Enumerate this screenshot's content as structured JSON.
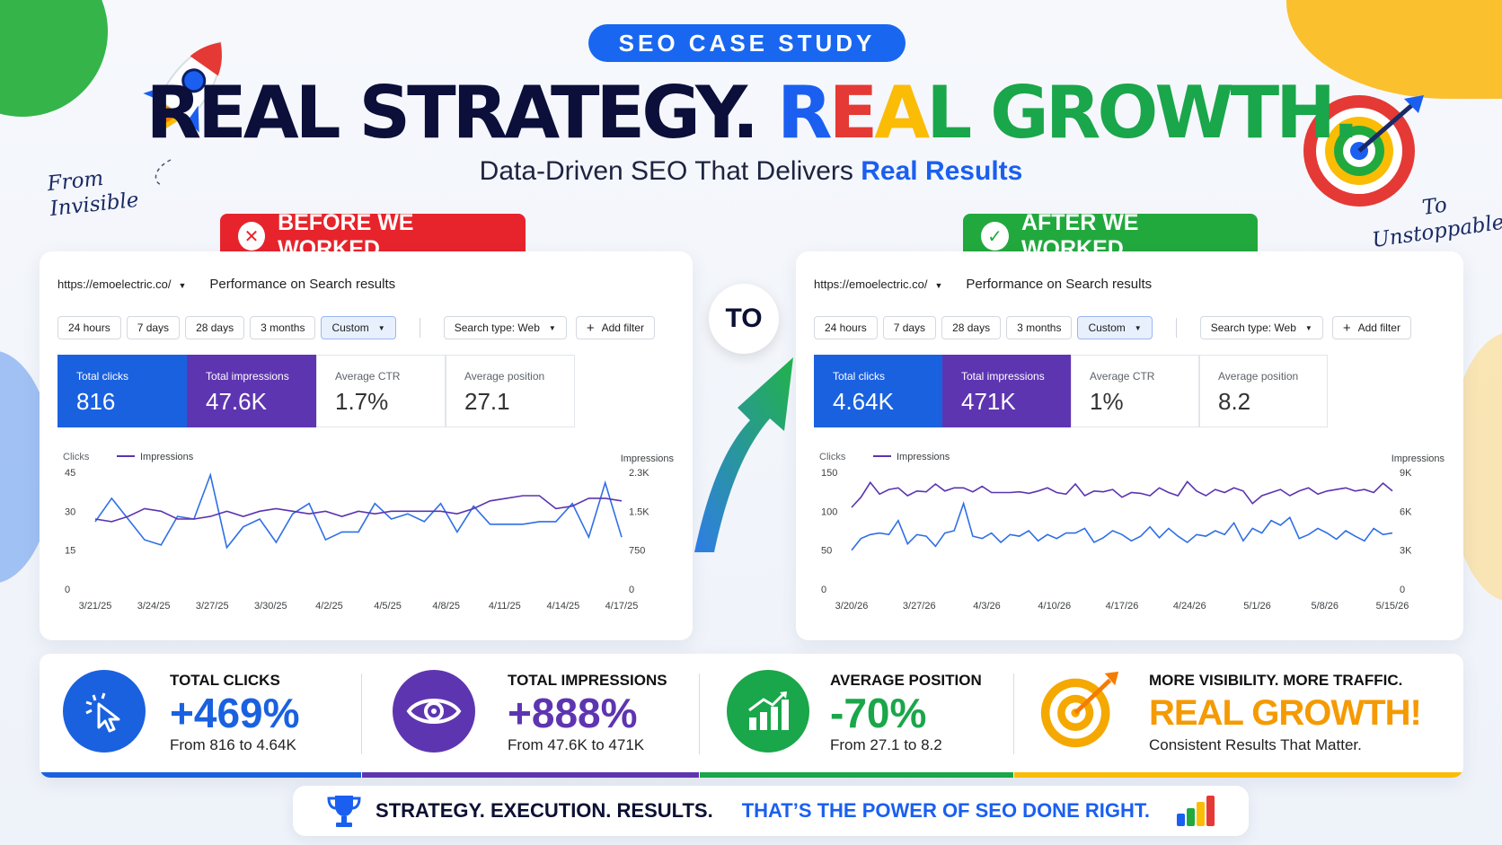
{
  "colors": {
    "brand_blue": "#1a5ff0",
    "red": "#e7242c",
    "green": "#22a93e",
    "purple": "#5e35b1",
    "yellow": "#fbbc05",
    "navy": "#0b0f3a"
  },
  "header": {
    "pill": "SEO CASE STUDY",
    "headline_part1": "REAL STRATEGY.",
    "headline_part2": [
      "R",
      "E",
      "A",
      "L"
    ],
    "headline_part3": "GROWTH.",
    "subline_part1": "Data-Driven SEO That Delivers",
    "subline_part2": "Real Results",
    "left_script_1": "From",
    "left_script_2": "Invisible",
    "right_script_1": "To",
    "right_script_2": "Unstoppable",
    "icons": [
      "rocket-icon",
      "target-icon"
    ]
  },
  "connector": {
    "label": "TO"
  },
  "before": {
    "badge": "BEFORE WE WORKED",
    "badge_icon": "close-icon",
    "url": "https://emoelectric.co/",
    "title": "Performance on Search results",
    "filters": [
      "24 hours",
      "7 days",
      "28 days",
      "3 months",
      "Custom"
    ],
    "search_type": "Search type: Web",
    "add_filter": "Add filter",
    "metrics": [
      {
        "label": "Total clicks",
        "value": "816"
      },
      {
        "label": "Total impressions",
        "value": "47.6K"
      },
      {
        "label": "Average CTR",
        "value": "1.7%"
      },
      {
        "label": "Average position",
        "value": "27.1"
      }
    ]
  },
  "after": {
    "badge": "AFTER WE WORKED",
    "badge_icon": "check-icon",
    "url": "https://emoelectric.co/",
    "title": "Performance on Search results",
    "filters": [
      "24 hours",
      "7 days",
      "28 days",
      "3 months",
      "Custom"
    ],
    "search_type": "Search type: Web",
    "add_filter": "Add filter",
    "metrics": [
      {
        "label": "Total clicks",
        "value": "4.64K"
      },
      {
        "label": "Total impressions",
        "value": "471K"
      },
      {
        "label": "Average CTR",
        "value": "1%"
      },
      {
        "label": "Average position",
        "value": "8.2"
      }
    ]
  },
  "chart_data": [
    {
      "type": "line",
      "left_axis_title": "Clicks",
      "right_axis_title": "Impressions",
      "legend": "Impressions",
      "y_left_ticks": [
        "45",
        "30",
        "15",
        "0"
      ],
      "y_right_ticks": [
        "2.3K",
        "1.5K",
        "750",
        "0"
      ],
      "ylim_left": [
        0,
        45
      ],
      "x_ticks": [
        "3/21/25",
        "3/24/25",
        "3/27/25",
        "3/30/25",
        "4/2/25",
        "4/5/25",
        "4/8/25",
        "4/11/25",
        "4/14/25",
        "4/17/25"
      ],
      "series": [
        {
          "color": "#2f6fe6",
          "values": [
            26,
            35,
            27,
            19,
            17,
            28,
            27,
            44,
            16,
            24,
            27,
            18,
            29,
            33,
            19,
            22,
            22,
            33,
            27,
            29,
            26,
            33,
            22,
            32,
            25,
            25,
            25,
            26,
            26,
            33,
            20,
            41,
            20
          ]
        },
        {
          "color": "#5b34b0",
          "values": [
            27,
            26,
            28,
            31,
            30,
            27,
            27,
            28,
            30,
            28,
            30,
            31,
            30,
            29,
            30,
            28,
            30,
            29,
            30,
            30,
            30,
            30,
            29,
            31,
            34,
            35,
            36,
            36,
            31,
            32,
            35,
            35,
            34
          ]
        }
      ]
    },
    {
      "type": "line",
      "left_axis_title": "Clicks",
      "right_axis_title": "Impressions",
      "legend": "Impressions",
      "y_left_ticks": [
        "150",
        "100",
        "50",
        "0"
      ],
      "y_right_ticks": [
        "9K",
        "6K",
        "3K",
        "0"
      ],
      "ylim_left": [
        0,
        150
      ],
      "x_ticks": [
        "3/20/26",
        "3/27/26",
        "4/3/26",
        "4/10/26",
        "4/17/26",
        "4/24/26",
        "5/1/26",
        "5/8/26",
        "5/15/26"
      ],
      "series": [
        {
          "color": "#2f6fe6",
          "values": [
            50,
            65,
            70,
            72,
            70,
            88,
            58,
            70,
            68,
            55,
            72,
            75,
            110,
            68,
            65,
            72,
            60,
            70,
            68,
            75,
            62,
            70,
            65,
            72,
            72,
            78,
            60,
            66,
            75,
            70,
            62,
            68,
            80,
            66,
            78,
            68,
            60,
            70,
            68,
            75,
            70,
            85,
            62,
            78,
            72,
            88,
            82,
            92,
            65,
            70,
            78,
            72,
            64,
            75,
            68,
            62,
            78,
            70,
            72
          ]
        },
        {
          "color": "#5b34b0",
          "values": [
            105,
            118,
            137,
            122,
            128,
            130,
            120,
            126,
            125,
            135,
            126,
            130,
            130,
            125,
            132,
            124,
            124,
            124,
            125,
            123,
            126,
            130,
            124,
            122,
            135,
            120,
            126,
            125,
            128,
            118,
            124,
            123,
            120,
            130,
            124,
            120,
            138,
            126,
            120,
            128,
            124,
            130,
            126,
            110,
            120,
            124,
            128,
            120,
            126,
            130,
            122,
            126,
            128,
            130,
            126,
            128,
            124,
            136,
            126
          ]
        }
      ]
    }
  ],
  "stats": [
    {
      "label": "TOTAL CLICKS",
      "big": "+469%",
      "sub": "From 816 to 4.64K",
      "icon": "cursor-click-icon",
      "color": "#1a61e0"
    },
    {
      "label": "TOTAL IMPRESSIONS",
      "big": "+888%",
      "sub": "From 47.6K to 471K",
      "icon": "eye-icon",
      "color": "#5e35b1"
    },
    {
      "label": "AVERAGE POSITION",
      "big": "-70%",
      "sub": "From 27.1 to 8.2",
      "icon": "bar-chart-up-icon",
      "color": "#1aa64a"
    },
    {
      "label": "MORE VISIBILITY. MORE TRAFFIC.",
      "big": "REAL GROWTH!",
      "sub": "Consistent Results That Matter.",
      "icon": "target-icon",
      "color": "#f5a800"
    }
  ],
  "footer": {
    "dark": "STRATEGY. EXECUTION. RESULTS.",
    "blue": "THAT’S THE POWER OF SEO DONE RIGHT.",
    "icons": [
      "trophy-icon",
      "bar-chart-icon"
    ]
  }
}
